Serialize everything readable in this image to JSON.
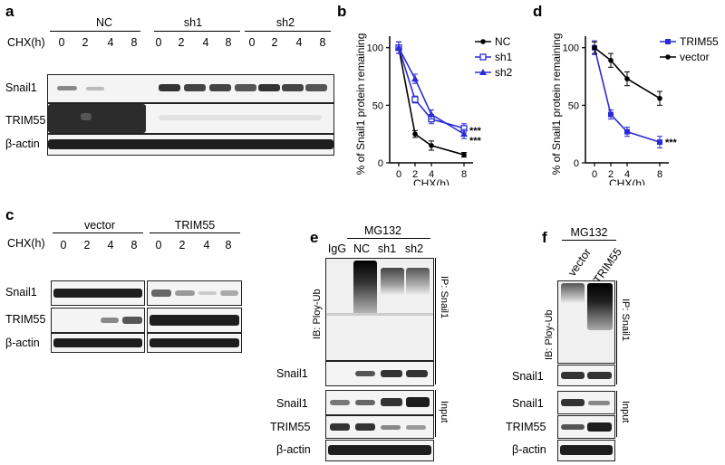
{
  "panels": {
    "a": {
      "label": "a",
      "groups": [
        "NC",
        "sh1",
        "sh2"
      ],
      "chx_label": "CHX(h)",
      "timepoints": [
        "0",
        "2",
        "4",
        "8"
      ],
      "rows": [
        "Snail1",
        "TRIM55",
        "β-actin"
      ]
    },
    "b": {
      "label": "b"
    },
    "c": {
      "label": "c",
      "groups": [
        "vector",
        "TRIM55"
      ],
      "chx_label": "CHX(h)",
      "timepoints": [
        "0",
        "2",
        "4",
        "8"
      ],
      "rows": [
        "Snail1",
        "TRIM55",
        "β-actin"
      ]
    },
    "d": {
      "label": "d"
    },
    "e": {
      "label": "e",
      "treatment": "MG132",
      "lanes": [
        "IgG",
        "NC",
        "sh1",
        "sh2"
      ],
      "ib_label": "IB: Ploy-Ub",
      "ip_label": "IP: Snail1",
      "input_label": "Input",
      "ip_row": "Snail1",
      "rows": [
        "Snail1",
        "TRIM55",
        "β-actin"
      ]
    },
    "f": {
      "label": "f",
      "treatment": "MG132",
      "lanes": [
        "vector",
        "TRIM55"
      ],
      "ib_label": "IB: Ploy-Ub",
      "ip_label": "IP: Snail1",
      "input_label": "Input",
      "ip_row": "Snail1",
      "rows": [
        "Snail1",
        "TRIM55",
        "β-actin"
      ]
    }
  },
  "chart_data": [
    {
      "type": "line",
      "panel": "b",
      "x": [
        0,
        2,
        4,
        8
      ],
      "xlabel": "CHX(h)",
      "ylabel": "% of Snail1 protein remaining",
      "xticks": [
        "0",
        "2",
        "4",
        "8"
      ],
      "yticks": [
        "0",
        "50",
        "100"
      ],
      "ylim": [
        0,
        110
      ],
      "series": [
        {
          "name": "NC",
          "values": [
            100,
            25,
            15,
            7
          ],
          "errors": [
            5,
            3,
            4,
            2
          ],
          "color": "#000000",
          "marker": "circle-filled"
        },
        {
          "name": "sh1",
          "values": [
            100,
            55,
            38,
            30
          ],
          "errors": [
            5,
            3,
            4,
            4
          ],
          "color": "#2a2ad8",
          "marker": "square-open"
        },
        {
          "name": "sh2",
          "values": [
            100,
            73,
            42,
            25
          ],
          "errors": [
            5,
            4,
            4,
            4
          ],
          "color": "#2a2ad8",
          "marker": "triangle-filled"
        }
      ],
      "significance": [
        "***",
        "***"
      ]
    },
    {
      "type": "line",
      "panel": "d",
      "x": [
        0,
        2,
        4,
        8
      ],
      "xlabel": "CHX(h)",
      "ylabel": "% of Snail1 protein remaining",
      "xticks": [
        "0",
        "2",
        "4",
        "8"
      ],
      "yticks": [
        "0",
        "50",
        "100"
      ],
      "ylim": [
        0,
        110
      ],
      "series": [
        {
          "name": "TRIM55",
          "values": [
            100,
            42,
            27,
            18
          ],
          "errors": [
            6,
            4,
            4,
            5
          ],
          "color": "#2a2ad8",
          "marker": "square-filled"
        },
        {
          "name": "vector",
          "values": [
            100,
            89,
            73,
            56
          ],
          "errors": [
            5,
            6,
            6,
            6
          ],
          "color": "#000000",
          "marker": "circle-filled"
        }
      ],
      "significance": [
        "***"
      ]
    }
  ],
  "colors": {
    "dark": "#1a1a1a",
    "blue": "#2a2ad8",
    "blot_bg": "#f4f4f4"
  }
}
